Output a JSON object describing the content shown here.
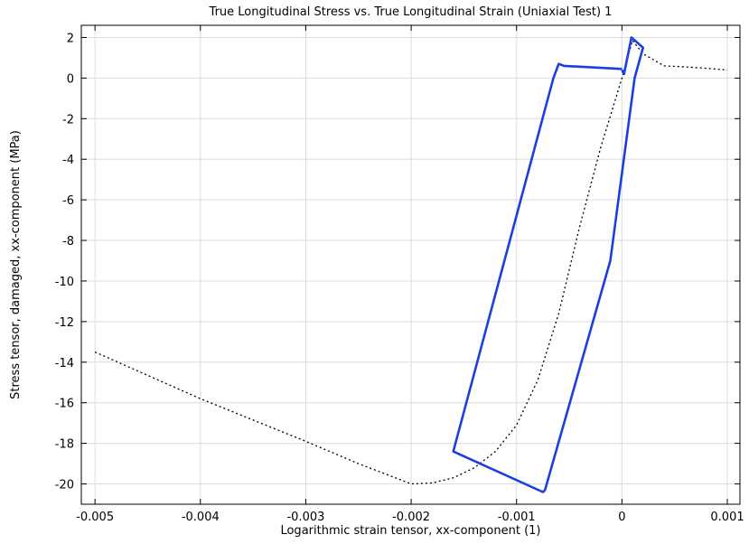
{
  "chart_data": {
    "type": "line",
    "title": "True Longitudinal Stress vs. True Longitudinal Strain (Uniaxial Test) 1",
    "xlabel": "Logarithmic strain tensor, xx-component (1)",
    "ylabel": "Stress tensor, damaged, xx-component (MPa)",
    "xlim": [
      -0.00513,
      0.00112
    ],
    "ylim": [
      -21.0,
      2.6
    ],
    "xticks": [
      -0.005,
      -0.004,
      -0.003,
      -0.002,
      -0.001,
      0,
      0.001
    ],
    "xtick_labels": [
      "-0.005",
      "-0.004",
      "-0.003",
      "-0.002",
      "-0.001",
      "0",
      "0.001"
    ],
    "yticks": [
      2,
      0,
      -2,
      -4,
      -6,
      -8,
      -10,
      -12,
      -14,
      -16,
      -18,
      -20
    ],
    "ytick_labels": [
      "2",
      "0",
      "-2",
      "-4",
      "-6",
      "-8",
      "-10",
      "-12",
      "-14",
      "-16",
      "-18",
      "-20"
    ],
    "grid": true,
    "legend": "none",
    "series": [
      {
        "style": "dotted",
        "color": "#000000",
        "x": [
          -0.005,
          -0.004,
          -0.003,
          -0.0025,
          -0.002,
          -0.0018,
          -0.0016,
          -0.0014,
          -0.0012,
          -0.001,
          -0.0008,
          -0.0006,
          -0.0004,
          -0.0002,
          0.0,
          0.0001,
          0.0002,
          0.0004,
          0.0006,
          0.0008,
          0.001
        ],
        "y": [
          -13.5,
          -15.8,
          -17.9,
          -19.0,
          -20.0,
          -19.95,
          -19.7,
          -19.2,
          -18.4,
          -17.1,
          -14.9,
          -11.6,
          -7.3,
          -3.4,
          0.0,
          1.85,
          1.2,
          0.6,
          0.55,
          0.48,
          0.4
        ]
      },
      {
        "style": "solid",
        "color": "#1a3fe0",
        "x": [
          0.0,
          2e-05,
          9e-05,
          0.0002,
          0.00012,
          -0.00011,
          -0.00073,
          -0.00075,
          -0.0016,
          -0.00065,
          -0.0006,
          -0.00055,
          0.0
        ],
        "y": [
          0.4,
          0.2,
          2.0,
          1.5,
          0.0,
          -9.0,
          -20.3,
          -20.4,
          -18.4,
          0.0,
          0.7,
          0.6,
          0.45
        ]
      }
    ]
  }
}
